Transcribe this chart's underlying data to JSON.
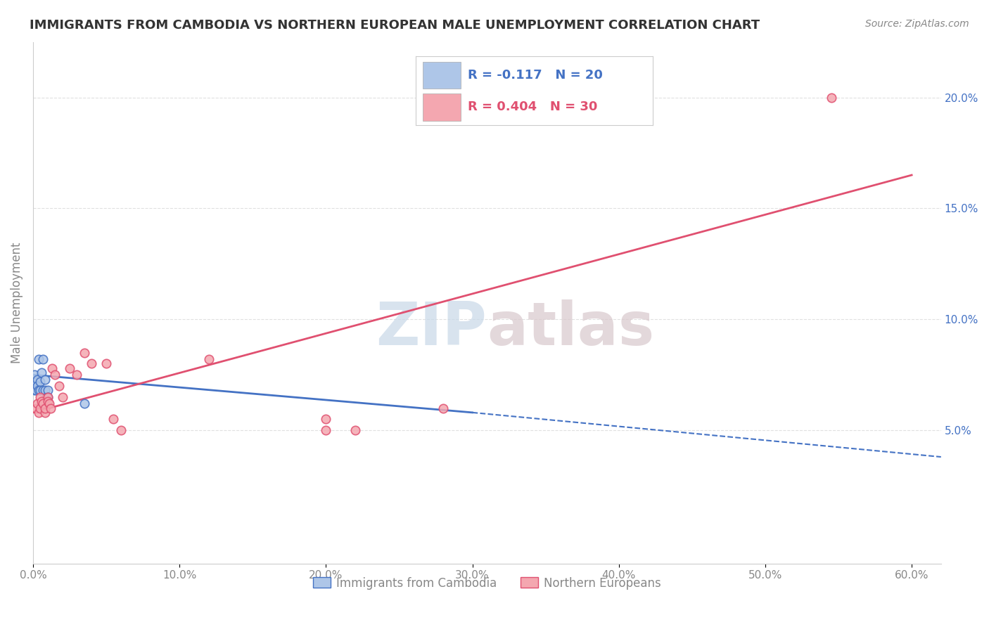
{
  "title": "IMMIGRANTS FROM CAMBODIA VS NORTHERN EUROPEAN MALE UNEMPLOYMENT CORRELATION CHART",
  "source": "Source: ZipAtlas.com",
  "ylabel": "Male Unemployment",
  "xlim": [
    0.0,
    0.62
  ],
  "ylim": [
    -0.01,
    0.225
  ],
  "xticks": [
    0.0,
    0.1,
    0.2,
    0.3,
    0.4,
    0.5,
    0.6
  ],
  "xticklabels": [
    "0.0%",
    "10.0%",
    "20.0%",
    "30.0%",
    "40.0%",
    "50.0%",
    "60.0%"
  ],
  "yticks_right": [
    0.05,
    0.1,
    0.15,
    0.2
  ],
  "yticklabels_right": [
    "5.0%",
    "10.0%",
    "15.0%",
    "20.0%"
  ],
  "legend_labels": [
    "Immigrants from Cambodia",
    "Northern Europeans"
  ],
  "legend_r_n": [
    {
      "R": "-0.117",
      "N": "20",
      "color": "#aec6e8",
      "text_color": "#4472c4"
    },
    {
      "R": "0.404",
      "N": "30",
      "color": "#f4a7b0",
      "text_color": "#e05070"
    }
  ],
  "watermark": "ZIPatlas",
  "scatter_cambodia": {
    "x": [
      0.001,
      0.001,
      0.001,
      0.002,
      0.002,
      0.003,
      0.003,
      0.004,
      0.004,
      0.005,
      0.005,
      0.006,
      0.007,
      0.007,
      0.008,
      0.008,
      0.009,
      0.01,
      0.01,
      0.035
    ],
    "y": [
      0.07,
      0.068,
      0.075,
      0.072,
      0.068,
      0.073,
      0.07,
      0.082,
      0.068,
      0.072,
      0.068,
      0.076,
      0.082,
      0.068,
      0.068,
      0.073,
      0.065,
      0.068,
      0.065,
      0.062
    ],
    "color": "#aec6e8",
    "edge_color": "#4472c4",
    "size": 80
  },
  "scatter_northern": {
    "x": [
      0.002,
      0.003,
      0.004,
      0.005,
      0.005,
      0.006,
      0.007,
      0.008,
      0.008,
      0.01,
      0.01,
      0.011,
      0.012,
      0.013,
      0.015,
      0.018,
      0.02,
      0.025,
      0.03,
      0.035,
      0.04,
      0.05,
      0.055,
      0.06,
      0.12,
      0.2,
      0.2,
      0.22,
      0.28,
      0.545
    ],
    "y": [
      0.06,
      0.062,
      0.058,
      0.065,
      0.06,
      0.063,
      0.062,
      0.058,
      0.06,
      0.065,
      0.063,
      0.062,
      0.06,
      0.078,
      0.075,
      0.07,
      0.065,
      0.078,
      0.075,
      0.085,
      0.08,
      0.08,
      0.055,
      0.05,
      0.082,
      0.055,
      0.05,
      0.05,
      0.06,
      0.2
    ],
    "color": "#f4a7b0",
    "edge_color": "#e05070",
    "size": 80
  },
  "trend_cambodia_solid": {
    "x_start": 0.0,
    "x_end": 0.3,
    "y_start": 0.075,
    "y_end": 0.058,
    "color": "#4472c4",
    "linewidth": 2.0
  },
  "trend_cambodia_dashed": {
    "x_start": 0.3,
    "x_end": 0.62,
    "y_start": 0.058,
    "y_end": 0.038,
    "color": "#4472c4",
    "linewidth": 1.5
  },
  "trend_northern": {
    "x_start": 0.0,
    "x_end": 0.6,
    "y_start": 0.058,
    "y_end": 0.165,
    "color": "#e05070",
    "linewidth": 2.0
  },
  "title_color": "#333333",
  "source_color": "#888888",
  "background_color": "#ffffff",
  "grid_color": "#e0e0e0",
  "watermark_color": "#d8d8d8",
  "axis_tick_color": "#888888"
}
